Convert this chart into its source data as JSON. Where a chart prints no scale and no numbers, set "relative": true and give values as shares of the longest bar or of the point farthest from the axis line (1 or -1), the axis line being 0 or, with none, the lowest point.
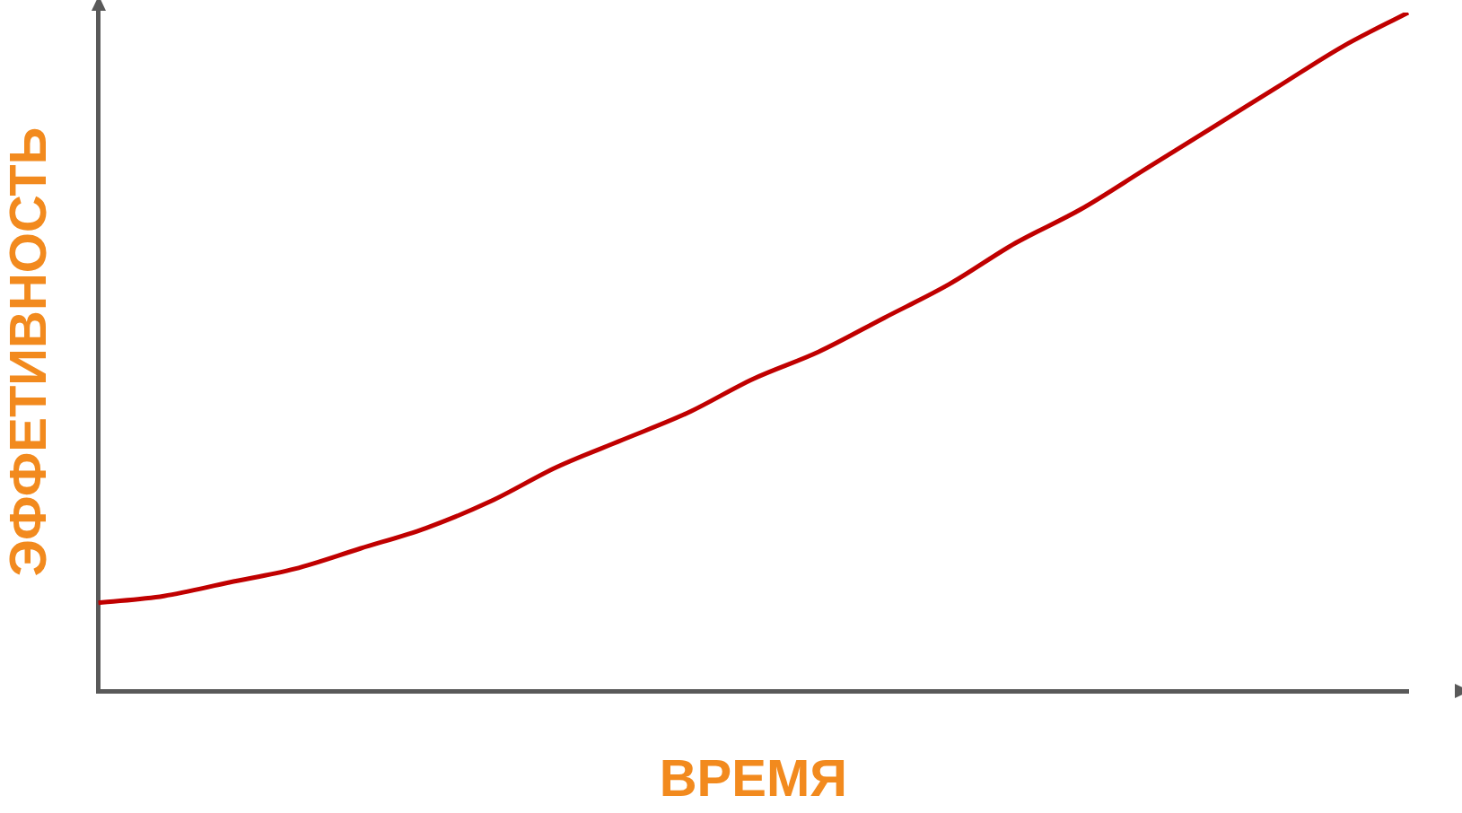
{
  "chart_data": {
    "type": "line",
    "xlabel": "ВРЕМЯ",
    "ylabel": "ЭФФЕТИВНОСТЬ",
    "relative": true,
    "grid": false,
    "legend": false,
    "marker": "none",
    "line_style": "solid",
    "categories": [
      null,
      null,
      null,
      null,
      null,
      null,
      null,
      null,
      null,
      null,
      null,
      null,
      null,
      null,
      null,
      null,
      null,
      null,
      null,
      null,
      null
    ],
    "series": [
      {
        "color": "#c00000",
        "values": [
          0.13,
          0.14,
          0.16,
          0.18,
          0.21,
          0.24,
          0.28,
          0.33,
          0.37,
          0.41,
          0.46,
          0.5,
          0.55,
          0.6,
          0.66,
          0.71,
          0.77,
          0.83,
          0.89,
          0.95,
          1
        ]
      }
    ]
  }
}
